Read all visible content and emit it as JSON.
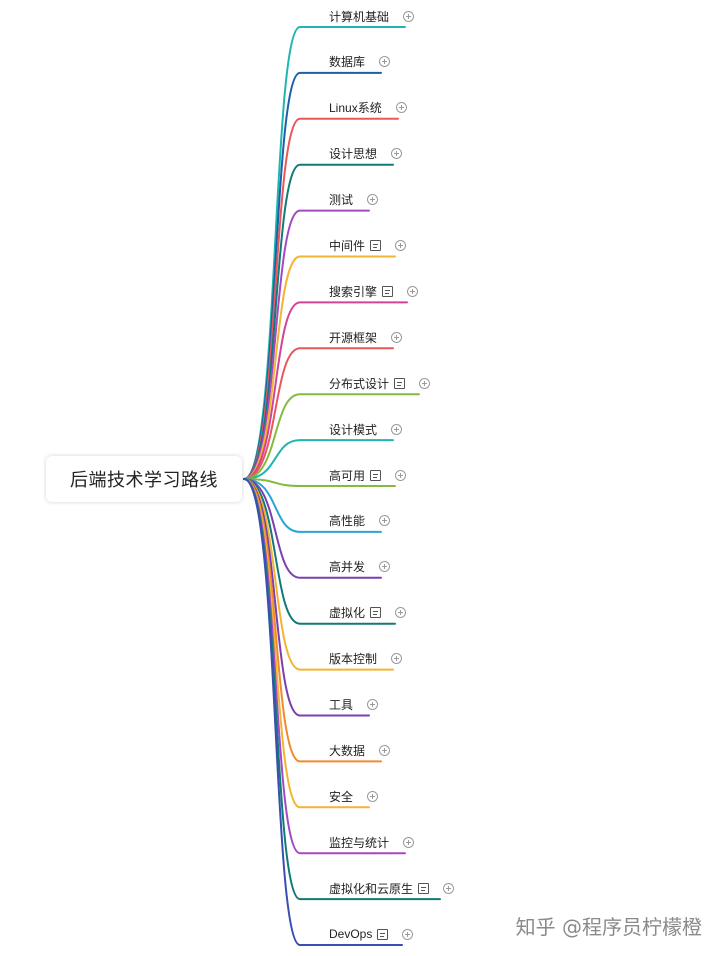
{
  "root": {
    "label": "后端技术学习路线"
  },
  "branches": [
    {
      "label": "计算机基础",
      "color": "#1fb5b0",
      "note": false
    },
    {
      "label": "数据库",
      "color": "#1f5fa8",
      "note": false
    },
    {
      "label": "Linux系统",
      "color": "#e8585b",
      "note": false
    },
    {
      "label": "设计思想",
      "color": "#117a78",
      "note": false
    },
    {
      "label": "测试",
      "color": "#a24ac4",
      "note": false
    },
    {
      "label": "中间件",
      "color": "#f2b431",
      "note": true
    },
    {
      "label": "搜索引擎",
      "color": "#d2429a",
      "note": true
    },
    {
      "label": "开源框架",
      "color": "#e8585b",
      "note": false
    },
    {
      "label": "分布式设计",
      "color": "#84bb3f",
      "note": true
    },
    {
      "label": "设计模式",
      "color": "#1fb5b0",
      "note": false
    },
    {
      "label": "高可用",
      "color": "#84bb3f",
      "note": true
    },
    {
      "label": "高性能",
      "color": "#2aa5d8",
      "note": false
    },
    {
      "label": "高并发",
      "color": "#7a3fb0",
      "note": false
    },
    {
      "label": "虚拟化",
      "color": "#117a78",
      "note": true
    },
    {
      "label": "版本控制",
      "color": "#f2b431",
      "note": false
    },
    {
      "label": "工具",
      "color": "#7a3fb0",
      "note": false
    },
    {
      "label": "大数据",
      "color": "#f08a2e",
      "note": false
    },
    {
      "label": "安全",
      "color": "#f2b431",
      "note": false
    },
    {
      "label": "监控与统计",
      "color": "#a24ac4",
      "note": false
    },
    {
      "label": "虚拟化和云原生",
      "color": "#117a78",
      "note": true
    },
    {
      "label": "DevOps",
      "color": "#3a4fb0",
      "note": true
    }
  ],
  "watermark": "知乎 @程序员柠檬橙"
}
